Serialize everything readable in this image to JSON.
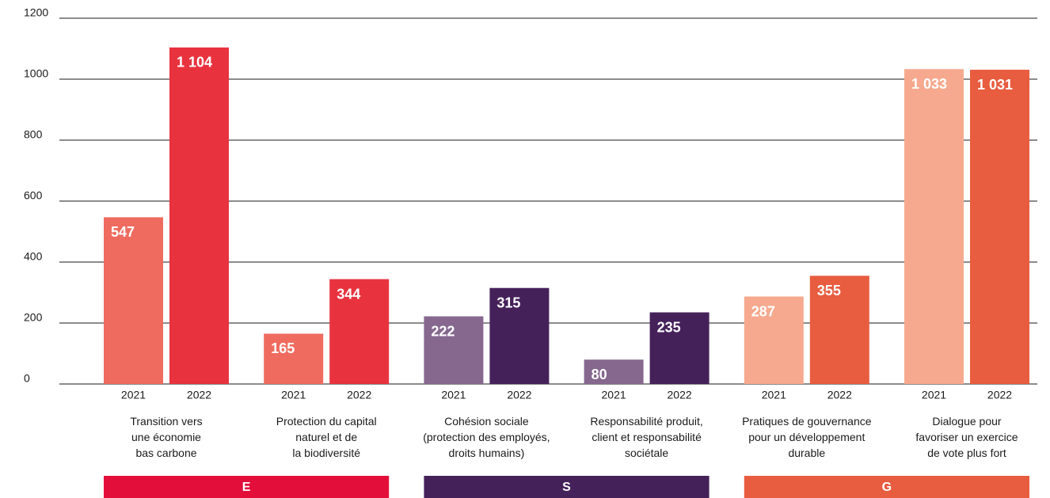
{
  "chart_data": {
    "type": "bar",
    "categories": [
      "Transition vers\nune économie\nbas carbone",
      "Protection du capital\nnaturel et de\nla biodiversité",
      "Cohésion sociale\n(protection des employés,\ndroits humains)",
      "Responsabilité produit,\nclient et responsabilité\nsociétale",
      "Pratiques de gouvernance\npour un développement\ndurable",
      "Dialogue pour\nfavoriser un exercice\nde vote plus fort"
    ],
    "series": [
      {
        "name": "2021",
        "colors": [
          "#ef6b5f",
          "#ef6b5f",
          "#86688f",
          "#86688f",
          "#f6a98e",
          "#f6a98e"
        ],
        "values": [
          547,
          165,
          222,
          80,
          287,
          1033
        ],
        "value_labels": [
          "547",
          "165",
          "222",
          "80",
          "287",
          "1 033"
        ]
      },
      {
        "name": "2022",
        "colors": [
          "#e8333f",
          "#e8333f",
          "#45215a",
          "#45215a",
          "#e85c3f",
          "#e85c3f"
        ],
        "values": [
          1104,
          344,
          315,
          235,
          355,
          1031
        ],
        "value_labels": [
          "1 104",
          "344",
          "315",
          "235",
          "355",
          "1 031"
        ]
      }
    ],
    "ylim": [
      0,
      1200
    ],
    "yticks": [
      0,
      200,
      400,
      600,
      800,
      1000,
      1200
    ],
    "grid": true,
    "pillars": [
      {
        "label": "E",
        "color": "#e30f3a"
      },
      {
        "label": "S",
        "color": "#45215a"
      },
      {
        "label": "G",
        "color": "#e85c3f"
      }
    ]
  }
}
